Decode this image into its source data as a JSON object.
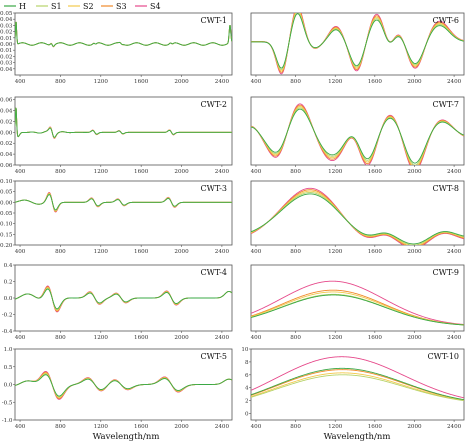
{
  "legend": [
    {
      "name": "H",
      "color": "#3aa845"
    },
    {
      "name": "S1",
      "color": "#b7d36a"
    },
    {
      "name": "S2",
      "color": "#f2c94c"
    },
    {
      "name": "S3",
      "color": "#f08a2b"
    },
    {
      "name": "S4",
      "color": "#e64a8b"
    }
  ],
  "xlabel": "Wavelength/nm",
  "chart_data": [
    {
      "type": "line",
      "title": "CWT-1",
      "xlim": [
        350,
        2500
      ],
      "ylim": [
        -0.05,
        0.05
      ],
      "x_ticks": [
        400,
        800,
        1200,
        1600,
        2000,
        2400
      ],
      "y_ticks": [
        "0.05",
        "0.04",
        "0.03",
        "0.02",
        "0.01",
        "0.00",
        "-0.01",
        "-0.02",
        "-0.03",
        "-0.04"
      ],
      "y_tick_values": [
        0.05,
        0.04,
        0.03,
        0.02,
        0.01,
        0.0,
        -0.01,
        -0.02,
        -0.03,
        -0.04
      ]
    },
    {
      "type": "line",
      "title": "CWT-2",
      "xlim": [
        350,
        2500
      ],
      "ylim": [
        -0.06,
        0.065
      ],
      "x_ticks": [
        400,
        800,
        1200,
        1600,
        2000,
        2400
      ],
      "y_ticks": [
        "0.06",
        "0.04",
        "0.02",
        "0.00",
        "-0.02",
        "-0.04",
        "-0.06"
      ],
      "y_tick_values": [
        0.06,
        0.04,
        0.02,
        0.0,
        -0.02,
        -0.04,
        -0.06
      ]
    },
    {
      "type": "line",
      "title": "CWT-3",
      "xlim": [
        350,
        2500
      ],
      "ylim": [
        -0.2,
        0.1
      ],
      "x_ticks": [
        400,
        800,
        1200,
        1600,
        2000,
        2400
      ],
      "y_ticks": [
        "0.10",
        "0.05",
        "0.00",
        "-0.05",
        "-0.10",
        "-0.15",
        "-0.20"
      ],
      "y_tick_values": [
        0.1,
        0.05,
        0.0,
        -0.05,
        -0.1,
        -0.15,
        -0.2
      ]
    },
    {
      "type": "line",
      "title": "CWT-4",
      "xlim": [
        350,
        2500
      ],
      "ylim": [
        -0.4,
        0.4
      ],
      "x_ticks": [
        400,
        800,
        1200,
        1600,
        2000,
        2400
      ],
      "y_ticks": [
        "0.4",
        "0.2",
        "0.0",
        "-0.2",
        "-0.4"
      ],
      "y_tick_values": [
        0.4,
        0.2,
        0.0,
        -0.2,
        -0.4
      ]
    },
    {
      "type": "line",
      "title": "CWT-5",
      "xlim": [
        350,
        2500
      ],
      "ylim": [
        -1.0,
        1.0
      ],
      "x_ticks": [
        400,
        800,
        1200,
        1600,
        2000,
        2400
      ],
      "y_ticks": [
        "1.0",
        "0.5",
        "0.0",
        "-0.5",
        "-1.0"
      ],
      "y_tick_values": [
        1.0,
        0.5,
        0.0,
        -0.5,
        -1.0
      ]
    },
    {
      "type": "line",
      "title": "CWT-6",
      "xlim": [
        350,
        2500
      ],
      "ylim": [
        -1.5,
        1.5
      ],
      "x_ticks": [
        400,
        800,
        1200,
        1600,
        2000,
        2400
      ],
      "y_ticks": [],
      "y_tick_values": []
    },
    {
      "type": "line",
      "title": "CWT-7",
      "xlim": [
        350,
        2500
      ],
      "ylim": [
        -2.5,
        2.5
      ],
      "x_ticks": [
        400,
        800,
        1200,
        1600,
        2000,
        2400
      ],
      "y_ticks": [],
      "y_tick_values": []
    },
    {
      "type": "line",
      "title": "CWT-8",
      "xlim": [
        350,
        2500
      ],
      "ylim": [
        -2.5,
        4.5
      ],
      "x_ticks": [
        400,
        800,
        1200,
        1600,
        2000,
        2400
      ],
      "y_ticks": [],
      "y_tick_values": []
    },
    {
      "type": "line",
      "title": "CWT-9",
      "xlim": [
        350,
        2500
      ],
      "ylim": [
        -3,
        8
      ],
      "x_ticks": [
        400,
        800,
        1200,
        1600,
        2000,
        2400
      ],
      "y_ticks": [],
      "y_tick_values": []
    },
    {
      "type": "line",
      "title": "CWT-10",
      "xlim": [
        350,
        2500
      ],
      "ylim": [
        -1,
        10
      ],
      "x_ticks": [
        400,
        800,
        1200,
        1600,
        2000,
        2400
      ],
      "y_ticks": [
        "10",
        "8",
        "6",
        "4",
        "2",
        "0"
      ],
      "y_tick_values": [
        10,
        8,
        6,
        4,
        2,
        0
      ]
    }
  ]
}
